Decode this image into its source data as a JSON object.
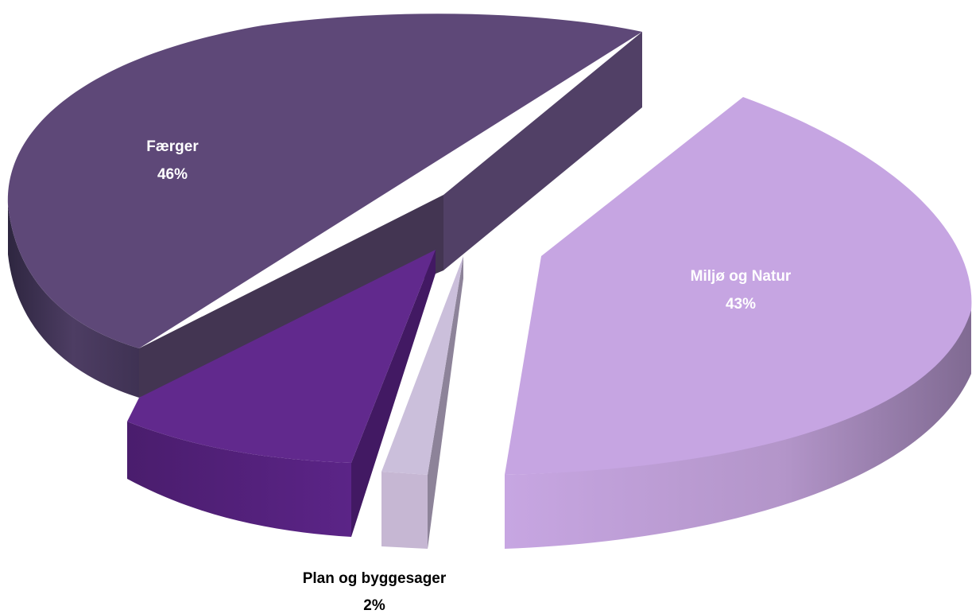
{
  "chart_data": {
    "type": "pie",
    "variant": "3d-exploded",
    "title": "",
    "slices": [
      {
        "label": "Færger",
        "value": 46,
        "value_label": "46%",
        "color": "#5e4878",
        "label_color": "#ffffff"
      },
      {
        "label": "",
        "value": 9,
        "value_label": "",
        "color": "#61298d",
        "label_color": "#ffffff"
      },
      {
        "label": "Plan og byggesager",
        "value": 2,
        "value_label": "2%",
        "color": "#cbbfdb",
        "label_color": "#000000"
      },
      {
        "label": "Miljø og Natur",
        "value": 43,
        "value_label": "43%",
        "color": "#c6a5e2",
        "label_color": "#ffffff"
      }
    ],
    "legend": "none"
  }
}
